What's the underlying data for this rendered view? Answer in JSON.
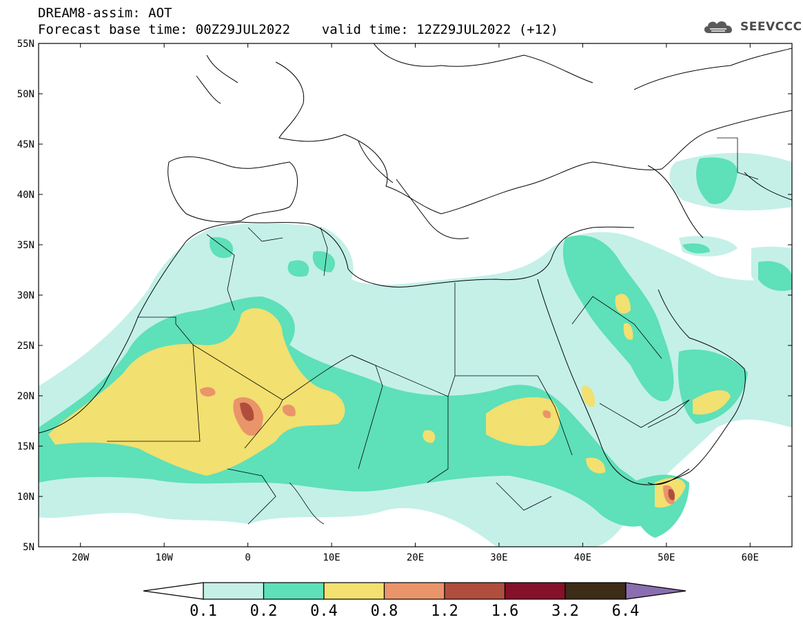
{
  "title": {
    "line1": "DREAM8-assim: AOT",
    "line2": "Forecast base time: 00Z29JUL2022    valid time: 12Z29JUL2022 (+12)"
  },
  "logo": {
    "text": "SEEVCCC",
    "icon": "cloud-icon"
  },
  "map": {
    "type": "filled-contour-map",
    "variable": "AOT",
    "lon_range": [
      -25,
      65
    ],
    "lat_range": [
      5,
      55
    ],
    "lat_ticks": [
      "55N",
      "50N",
      "45N",
      "40N",
      "35N",
      "30N",
      "25N",
      "20N",
      "15N",
      "10N",
      "5N"
    ],
    "lon_ticks": [
      "20W",
      "10W",
      "0",
      "10E",
      "20E",
      "30E",
      "40E",
      "50E",
      "60E"
    ]
  },
  "colorbar": {
    "labels": [
      "0.1",
      "0.2",
      "0.4",
      "0.8",
      "1.2",
      "1.6",
      "3.2",
      "6.4"
    ],
    "colors": [
      "#c4f0e8",
      "#5ee0b8",
      "#f2e070",
      "#ea946a",
      "#b04e3e",
      "#84102a",
      "#3c2c18",
      "#8a6eb0"
    ]
  },
  "palette": {
    "lvl1": "#c4f0e8",
    "lvl2": "#5ee0b8",
    "lvl3": "#f2e070",
    "lvl4": "#ea946a",
    "lvl5": "#b04e3e"
  }
}
